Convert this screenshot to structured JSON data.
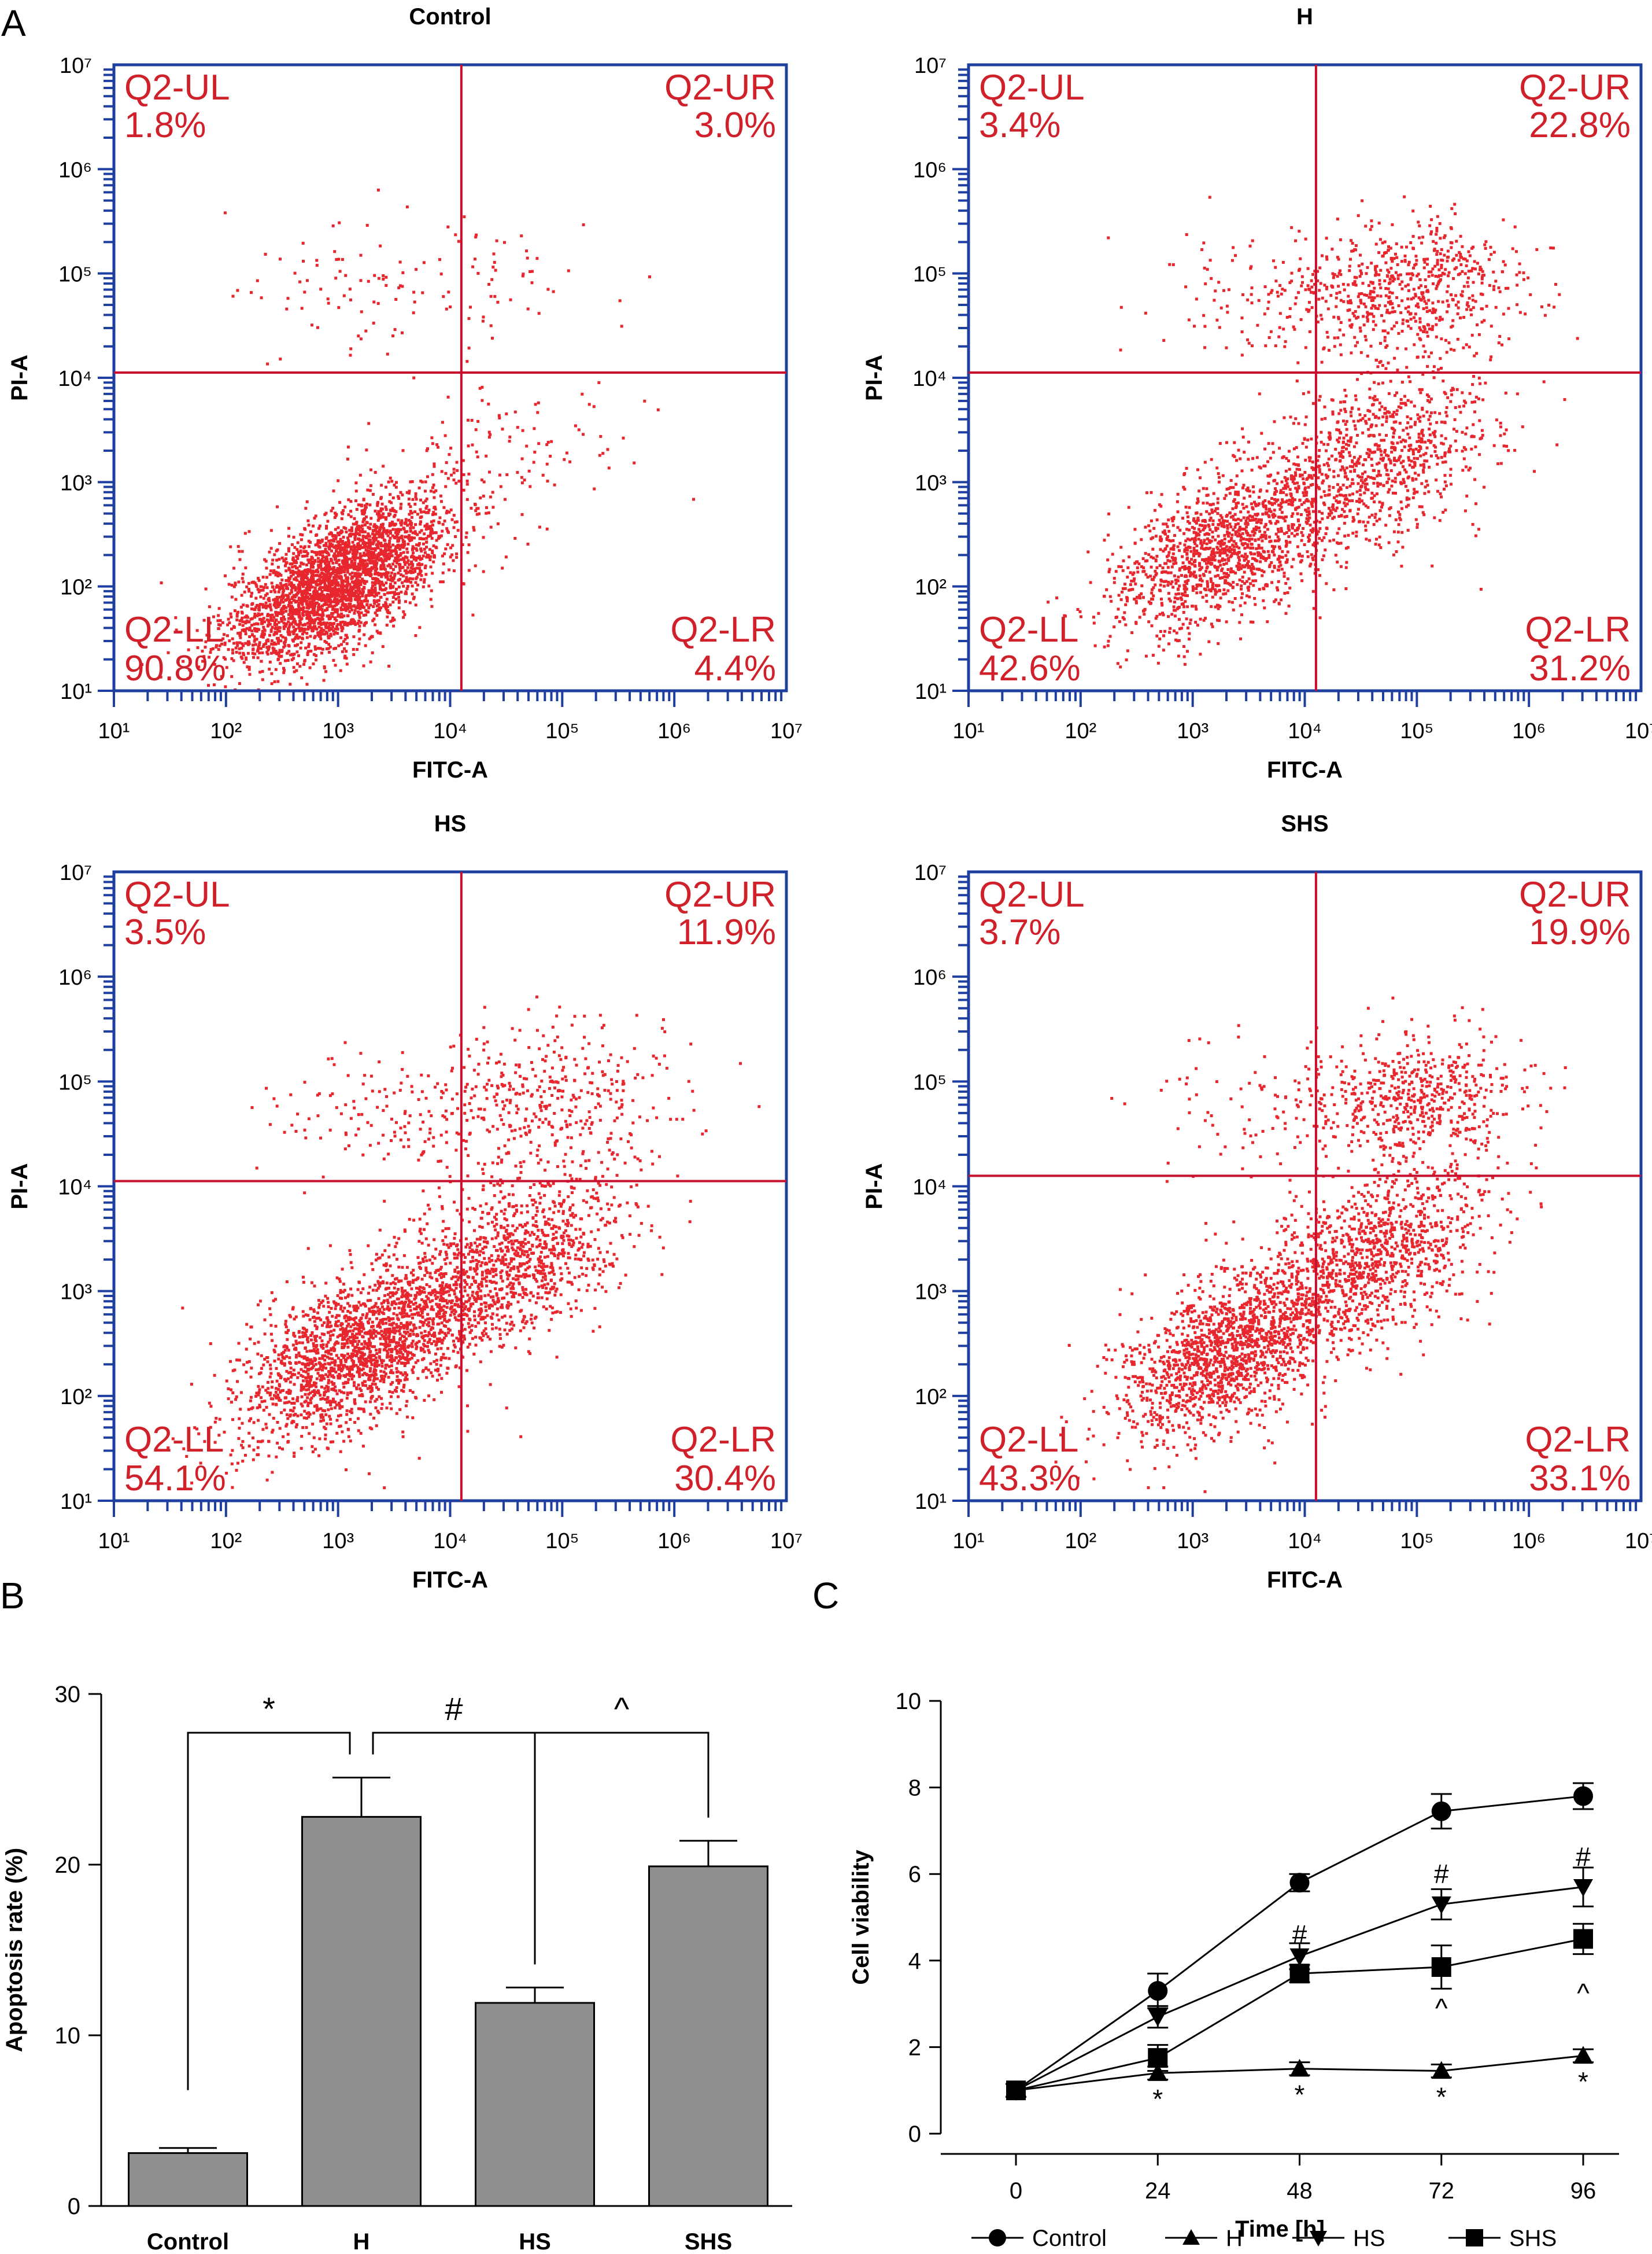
{
  "panel_labels": {
    "a": "A",
    "b": "B",
    "c": "C"
  },
  "colors": {
    "dot": "#e8262e",
    "gate": "#c8102e",
    "frame": "#1f3fa0",
    "quad_text": "#d0202a",
    "bar": "#8f8f8f",
    "line": "#000000"
  },
  "chart_data": [
    {
      "type": "scatter",
      "id": "control",
      "title": "Control",
      "xlabel": "FITC-A",
      "ylabel": "PI-A",
      "scale": "log",
      "xlim": [
        1,
        7
      ],
      "ylim": [
        1,
        7
      ],
      "ticks": [
        "10¹",
        "10²",
        "10³",
        "10⁴",
        "10⁵",
        "10⁶",
        "10⁷"
      ],
      "gate": {
        "x": 4.1,
        "y": 4.05
      },
      "quadrants": [
        {
          "name": "Q2-UL",
          "value": "1.8%"
        },
        {
          "name": "Q2-UR",
          "value": "3.0%"
        },
        {
          "name": "Q2-LL",
          "value": "90.8%"
        },
        {
          "name": "Q2-LR",
          "value": "4.4%"
        }
      ],
      "clusters": [
        {
          "n": 3000,
          "cx": 3.0,
          "cy": 2.05,
          "sx": 0.5,
          "sy": 0.4,
          "rho": 0.65
        },
        {
          "n": 110,
          "cx": 4.5,
          "cy": 3.3,
          "sx": 0.6,
          "sy": 0.35,
          "rho": 0.3
        },
        {
          "n": 60,
          "cx": 4.4,
          "cy": 4.9,
          "sx": 0.5,
          "sy": 0.3,
          "rho": 0.0
        },
        {
          "n": 70,
          "cx": 3.0,
          "cy": 4.9,
          "sx": 0.5,
          "sy": 0.35,
          "rho": 0.0
        }
      ]
    },
    {
      "type": "scatter",
      "id": "h",
      "title": "H",
      "xlabel": "FITC-A",
      "ylabel": "PI-A",
      "scale": "log",
      "xlim": [
        1,
        7
      ],
      "ylim": [
        1,
        7
      ],
      "ticks": [
        "10¹",
        "10²",
        "10³",
        "10⁴",
        "10⁵",
        "10⁶",
        "10⁷"
      ],
      "gate": {
        "x": 4.1,
        "y": 4.05
      },
      "quadrants": [
        {
          "name": "Q2-UL",
          "value": "3.4%"
        },
        {
          "name": "Q2-UR",
          "value": "22.8%"
        },
        {
          "name": "Q2-LL",
          "value": "42.6%"
        },
        {
          "name": "Q2-LR",
          "value": "31.2%"
        }
      ],
      "clusters": [
        {
          "n": 1300,
          "cx": 3.25,
          "cy": 2.35,
          "sx": 0.5,
          "sy": 0.4,
          "rho": 0.5
        },
        {
          "n": 900,
          "cx": 4.6,
          "cy": 3.2,
          "sx": 0.55,
          "sy": 0.45,
          "rho": 0.4
        },
        {
          "n": 650,
          "cx": 4.9,
          "cy": 4.85,
          "sx": 0.55,
          "sy": 0.3,
          "rho": 0.1
        },
        {
          "n": 90,
          "cx": 3.6,
          "cy": 4.8,
          "sx": 0.5,
          "sy": 0.35,
          "rho": 0.0
        }
      ]
    },
    {
      "type": "scatter",
      "id": "hs",
      "title": "HS",
      "xlabel": "FITC-A",
      "ylabel": "PI-A",
      "scale": "log",
      "xlim": [
        1,
        7
      ],
      "ylim": [
        1,
        7
      ],
      "ticks": [
        "10¹",
        "10²",
        "10³",
        "10⁴",
        "10⁵",
        "10⁶",
        "10⁷"
      ],
      "gate": {
        "x": 4.1,
        "y": 4.05
      },
      "quadrants": [
        {
          "name": "Q2-UL",
          "value": "3.5%"
        },
        {
          "name": "Q2-UR",
          "value": "11.9%"
        },
        {
          "name": "Q2-LL",
          "value": "54.1%"
        },
        {
          "name": "Q2-LR",
          "value": "30.4%"
        }
      ],
      "clusters": [
        {
          "n": 2000,
          "cx": 3.2,
          "cy": 2.45,
          "sx": 0.55,
          "sy": 0.45,
          "rho": 0.6
        },
        {
          "n": 1000,
          "cx": 4.6,
          "cy": 3.3,
          "sx": 0.5,
          "sy": 0.45,
          "rho": 0.45
        },
        {
          "n": 400,
          "cx": 4.8,
          "cy": 4.8,
          "sx": 0.6,
          "sy": 0.35,
          "rho": 0.1
        },
        {
          "n": 110,
          "cx": 3.3,
          "cy": 4.7,
          "sx": 0.6,
          "sy": 0.35,
          "rho": 0.0
        }
      ]
    },
    {
      "type": "scatter",
      "id": "shs",
      "title": "SHS",
      "xlabel": "FITC-A",
      "ylabel": "PI-A",
      "scale": "log",
      "xlim": [
        1,
        7
      ],
      "ylim": [
        1,
        7
      ],
      "ticks": [
        "10¹",
        "10²",
        "10³",
        "10⁴",
        "10⁵",
        "10⁶",
        "10⁷"
      ],
      "gate": {
        "x": 4.1,
        "y": 4.1
      },
      "quadrants": [
        {
          "name": "Q2-UL",
          "value": "3.7%"
        },
        {
          "name": "Q2-UR",
          "value": "19.9%"
        },
        {
          "name": "Q2-LL",
          "value": "43.3%"
        },
        {
          "name": "Q2-LR",
          "value": "33.1%"
        }
      ],
      "clusters": [
        {
          "n": 1500,
          "cx": 3.3,
          "cy": 2.4,
          "sx": 0.5,
          "sy": 0.42,
          "rho": 0.55
        },
        {
          "n": 1100,
          "cx": 4.6,
          "cy": 3.3,
          "sx": 0.5,
          "sy": 0.45,
          "rho": 0.45
        },
        {
          "n": 550,
          "cx": 5.0,
          "cy": 4.85,
          "sx": 0.45,
          "sy": 0.3,
          "rho": 0.1
        },
        {
          "n": 100,
          "cx": 3.7,
          "cy": 4.8,
          "sx": 0.5,
          "sy": 0.3,
          "rho": 0.0
        }
      ]
    },
    {
      "type": "bar",
      "id": "apoptosis",
      "categories": [
        "Control",
        "H",
        "HS",
        "SHS"
      ],
      "values": [
        3.1,
        22.8,
        11.9,
        19.9
      ],
      "errors": [
        0.3,
        2.3,
        0.9,
        1.5
      ],
      "ylabel": "Apoptosis rate (%)",
      "ylim": [
        0,
        30
      ],
      "yticks": [
        0,
        10,
        20,
        30
      ],
      "significance": [
        {
          "from": 0,
          "to": 1,
          "symbol": "*"
        },
        {
          "from": 1,
          "to": 2,
          "symbol": "#"
        },
        {
          "from": 2,
          "to": 3,
          "symbol": "^"
        }
      ]
    },
    {
      "type": "line",
      "id": "viability",
      "x": [
        0,
        24,
        48,
        72,
        96
      ],
      "xticks": [
        "0",
        "24",
        "48",
        "72",
        "96"
      ],
      "xlabel": "Time [h]",
      "ylabel": "Cell viability",
      "ylim": [
        0,
        10
      ],
      "yticks": [
        0,
        2,
        4,
        6,
        8,
        10
      ],
      "series": [
        {
          "name": "Control",
          "marker": "circle",
          "values": [
            1.0,
            3.3,
            5.8,
            7.45,
            7.8
          ],
          "errors": [
            0.15,
            0.4,
            0.2,
            0.4,
            0.3
          ]
        },
        {
          "name": "H",
          "marker": "triangle-up",
          "values": [
            1.0,
            1.4,
            1.5,
            1.45,
            1.8
          ],
          "errors": [
            0.15,
            0.15,
            0.15,
            0.15,
            0.15
          ]
        },
        {
          "name": "HS",
          "marker": "triangle-down",
          "values": [
            1.0,
            2.7,
            4.1,
            5.3,
            5.7
          ],
          "errors": [
            0.15,
            0.25,
            0.3,
            0.35,
            0.45
          ]
        },
        {
          "name": "SHS",
          "marker": "square",
          "values": [
            1.0,
            1.75,
            3.7,
            3.85,
            4.5
          ],
          "errors": [
            0.15,
            0.3,
            0.2,
            0.5,
            0.35
          ]
        }
      ],
      "annotations": [
        {
          "x": 24,
          "y": 0.8,
          "text": "*"
        },
        {
          "x": 48,
          "y": 0.9,
          "text": "*"
        },
        {
          "x": 72,
          "y": 0.85,
          "text": "*"
        },
        {
          "x": 96,
          "y": 1.2,
          "text": "*"
        },
        {
          "x": 48,
          "y": 4.6,
          "text": "#"
        },
        {
          "x": 72,
          "y": 6.0,
          "text": "#"
        },
        {
          "x": 96,
          "y": 6.4,
          "text": "#"
        },
        {
          "x": 72,
          "y": 2.9,
          "text": "^"
        },
        {
          "x": 96,
          "y": 3.25,
          "text": "^"
        }
      ]
    }
  ]
}
